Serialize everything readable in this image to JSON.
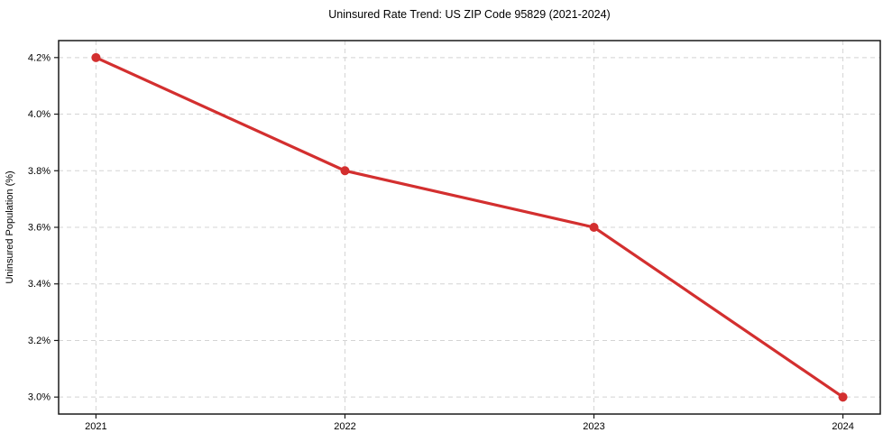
{
  "chart_data": {
    "type": "line",
    "title": "Uninsured Rate Trend: US ZIP Code 95829 (2021-2024)",
    "xlabel": "",
    "ylabel": "Uninsured Population (%)",
    "x": [
      2021,
      2022,
      2023,
      2024
    ],
    "values": [
      4.2,
      3.8,
      3.6,
      3.0
    ],
    "xlim": [
      2020.85,
      2024.15
    ],
    "ylim": [
      2.94,
      4.26
    ],
    "xticks": [
      2021,
      2022,
      2023,
      2024
    ],
    "xtick_labels": [
      "2021",
      "2022",
      "2023",
      "2024"
    ],
    "yticks": [
      3.0,
      3.2,
      3.4,
      3.6,
      3.8,
      4.0,
      4.2
    ],
    "ytick_labels": [
      "3.0%",
      "3.2%",
      "3.4%",
      "3.6%",
      "3.8%",
      "4.0%",
      "4.2%"
    ],
    "grid": true,
    "legend": "none",
    "colors": {
      "line": "#d32f2f",
      "marker": "#d32f2f",
      "grid": "#d4d4d4",
      "axis": "#1a1a1a",
      "text": "#000000",
      "background": "#ffffff"
    }
  }
}
